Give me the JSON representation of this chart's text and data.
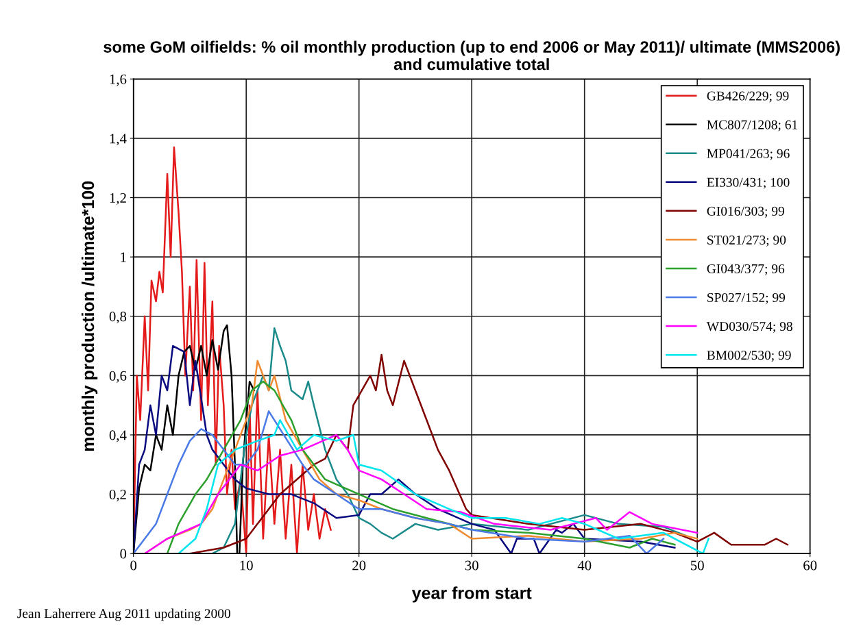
{
  "chart_data": {
    "type": "line",
    "title": "some GoM oilfields: % oil monthly production (up to end 2006 or May 2011)/ ultimate (MMS2006) and cumulative total",
    "xlabel": "year from start",
    "ylabel": "monthly production /ultimate*100",
    "annotations": [
      "Jean Laherrere Aug 2011 updating 2000"
    ],
    "xlim": [
      0,
      60
    ],
    "xticks": [
      0,
      10,
      20,
      30,
      40,
      50,
      60
    ],
    "ylim": [
      0,
      1.6
    ],
    "yticks": [
      0,
      {
        "value": 0.2,
        "label": "0,2"
      },
      {
        "value": 0.4,
        "label": "0,4"
      },
      {
        "value": 0.6,
        "label": "0,6"
      },
      {
        "value": 0.8,
        "label": "0,8"
      },
      1,
      {
        "value": 1.2,
        "label": "1,2"
      },
      {
        "value": 1.4,
        "label": "1,4"
      },
      {
        "value": 1.6,
        "label": "1,6"
      }
    ],
    "grid": true,
    "legend": "top right",
    "marker": "none",
    "line_style": "solid",
    "series": [
      {
        "name": "GB426/229; 99",
        "color": "#e41a1a",
        "x": [
          0,
          0.3,
          0.6,
          1,
          1.3,
          1.6,
          2,
          2.3,
          2.6,
          3,
          3.3,
          3.6,
          4,
          4.3,
          4.6,
          5,
          5.3,
          5.6,
          6,
          6.3,
          6.6,
          7,
          7.3,
          7.6,
          8,
          8.3,
          8.7,
          9,
          9.5,
          10,
          10.3,
          10.6,
          11,
          11.5,
          12,
          12.5,
          13,
          13.5,
          14,
          14.5,
          15,
          15.5,
          16,
          16.5,
          17,
          17.5
        ],
        "values": [
          0,
          0.6,
          0.45,
          0.8,
          0.55,
          0.92,
          0.85,
          0.95,
          0.88,
          1.28,
          1.0,
          1.37,
          1.15,
          0.95,
          0.6,
          0.9,
          0.55,
          0.99,
          0.45,
          0.98,
          0.5,
          0.85,
          0.3,
          0.7,
          0.5,
          0.2,
          0.35,
          0.15,
          0.25,
          0.0,
          0.5,
          0.1,
          0.55,
          0.05,
          0.4,
          0.1,
          0.35,
          0.05,
          0.3,
          0.0,
          0.3,
          0.08,
          0.2,
          0.05,
          0.15,
          0.08
        ]
      },
      {
        "name": "MC807/1208; 61",
        "color": "#000000",
        "x": [
          0,
          0.5,
          1,
          1.5,
          2,
          2.5,
          3,
          3.5,
          4,
          4.5,
          5,
          5.5,
          6,
          6.5,
          7,
          7.5,
          8,
          8.3,
          8.7,
          9,
          9.2,
          9.4,
          9.7,
          10,
          10.3,
          10.7
        ],
        "values": [
          0,
          0.22,
          0.3,
          0.28,
          0.4,
          0.35,
          0.5,
          0.4,
          0.6,
          0.68,
          0.7,
          0.62,
          0.7,
          0.6,
          0.72,
          0.62,
          0.75,
          0.77,
          0.6,
          0.3,
          0.0,
          0.0,
          0.3,
          0.45,
          0.58,
          0.55
        ]
      },
      {
        "name": "MP041/263; 96",
        "color": "#1a8a8a",
        "x": [
          7,
          8,
          9,
          9.5,
          10,
          10.5,
          11,
          11.5,
          12,
          12.5,
          13,
          13.5,
          14,
          15,
          15.5,
          16,
          17,
          17.5,
          18,
          19,
          20,
          21,
          22,
          23,
          25,
          27,
          30,
          35,
          40,
          43,
          47,
          49
        ],
        "values": [
          0,
          0.02,
          0.1,
          0.25,
          0.4,
          0.5,
          0.55,
          0.6,
          0.55,
          0.76,
          0.7,
          0.65,
          0.55,
          0.52,
          0.58,
          0.5,
          0.35,
          0.3,
          0.25,
          0.2,
          0.12,
          0.1,
          0.07,
          0.05,
          0.1,
          0.08,
          0.1,
          0.08,
          0.13,
          0.1,
          0.09,
          0.06
        ]
      },
      {
        "name": "EI330/431; 100",
        "color": "#0a0a80",
        "x": [
          0,
          0.5,
          1,
          1.5,
          2,
          2.5,
          3,
          3.5,
          4.5,
          5,
          5.5,
          6.5,
          7,
          8,
          9,
          10,
          12,
          14,
          16,
          18,
          20,
          21,
          22,
          23.5,
          25,
          27,
          30,
          32,
          33.5,
          34,
          35.5,
          36,
          37.5,
          38,
          39,
          40,
          45,
          48
        ],
        "values": [
          0,
          0.3,
          0.35,
          0.5,
          0.4,
          0.6,
          0.55,
          0.7,
          0.68,
          0.5,
          0.65,
          0.4,
          0.35,
          0.3,
          0.25,
          0.22,
          0.2,
          0.2,
          0.17,
          0.12,
          0.13,
          0.2,
          0.2,
          0.25,
          0.2,
          0.15,
          0.1,
          0.08,
          0.0,
          0.05,
          0.05,
          0.0,
          0.08,
          0.07,
          0.1,
          0.05,
          0.04,
          0.02
        ]
      },
      {
        "name": "GI016/303; 99",
        "color": "#800000",
        "x": [
          5,
          8,
          10,
          11,
          13,
          16,
          17,
          18,
          19,
          19.5,
          21,
          21.5,
          22,
          22.5,
          23,
          24,
          25,
          26,
          27,
          28,
          29.5,
          30,
          35,
          40,
          45,
          48,
          50,
          51.5,
          53,
          56,
          57,
          58
        ],
        "values": [
          0,
          0.02,
          0.05,
          0.1,
          0.2,
          0.3,
          0.32,
          0.4,
          0.35,
          0.5,
          0.6,
          0.55,
          0.67,
          0.55,
          0.5,
          0.65,
          0.55,
          0.45,
          0.35,
          0.28,
          0.15,
          0.13,
          0.1,
          0.08,
          0.1,
          0.07,
          0.04,
          0.07,
          0.03,
          0.03,
          0.05,
          0.03
        ]
      },
      {
        "name": "ST021/273; 90",
        "color": "#f08a30",
        "x": [
          1,
          3,
          5,
          6,
          7,
          8,
          9.5,
          10.5,
          11,
          12,
          12.5,
          13.5,
          15,
          16.5,
          18,
          20,
          22,
          25,
          28,
          30,
          35,
          40,
          45,
          48,
          50
        ],
        "values": [
          0,
          0.05,
          0.08,
          0.1,
          0.15,
          0.25,
          0.4,
          0.5,
          0.65,
          0.55,
          0.6,
          0.45,
          0.35,
          0.25,
          0.2,
          0.18,
          0.15,
          0.12,
          0.1,
          0.05,
          0.06,
          0.04,
          0.05,
          0.07,
          0.05
        ]
      },
      {
        "name": "GI043/377; 96",
        "color": "#2ca02c",
        "x": [
          3,
          4,
          5.5,
          6.5,
          8,
          9.5,
          10.5,
          11.5,
          12.5,
          14,
          15,
          17,
          20,
          23,
          26,
          30,
          35,
          40,
          44,
          46,
          48
        ],
        "values": [
          0,
          0.1,
          0.2,
          0.25,
          0.35,
          0.45,
          0.55,
          0.58,
          0.55,
          0.45,
          0.35,
          0.25,
          0.2,
          0.15,
          0.12,
          0.08,
          0.07,
          0.05,
          0.02,
          0.05,
          0.03
        ]
      },
      {
        "name": "SP027/152; 99",
        "color": "#4a7ae8",
        "x": [
          0,
          1,
          2,
          3,
          4,
          5,
          6,
          7,
          8,
          9,
          10,
          11,
          12,
          13,
          15,
          16,
          18,
          20,
          22,
          25,
          28,
          30,
          35,
          40,
          44,
          45.5,
          47
        ],
        "values": [
          0,
          0.05,
          0.1,
          0.2,
          0.3,
          0.38,
          0.42,
          0.4,
          0.35,
          0.3,
          0.3,
          0.35,
          0.48,
          0.42,
          0.3,
          0.25,
          0.2,
          0.15,
          0.15,
          0.12,
          0.1,
          0.08,
          0.05,
          0.04,
          0.06,
          0.0,
          0.05
        ]
      },
      {
        "name": "WD030/574; 98",
        "color": "#ff00ff",
        "x": [
          1,
          3,
          6,
          7.5,
          8.5,
          9.5,
          11,
          13,
          15,
          18,
          19,
          20,
          22,
          24,
          26,
          29,
          32,
          37,
          41,
          42,
          44,
          46,
          50
        ],
        "values": [
          0,
          0.05,
          0.1,
          0.2,
          0.25,
          0.3,
          0.28,
          0.33,
          0.35,
          0.4,
          0.35,
          0.28,
          0.25,
          0.2,
          0.15,
          0.14,
          0.1,
          0.08,
          0.12,
          0.08,
          0.14,
          0.1,
          0.07
        ]
      },
      {
        "name": "BM002/530; 99",
        "color": "#00e5ee",
        "x": [
          4,
          5.5,
          6.5,
          7.5,
          9,
          11,
          12.5,
          13,
          14.5,
          16,
          18,
          19.5,
          20,
          22,
          25,
          28,
          30,
          33,
          36,
          38,
          40,
          43,
          47,
          50.5,
          51
        ],
        "values": [
          0,
          0.05,
          0.15,
          0.3,
          0.35,
          0.38,
          0.4,
          0.45,
          0.35,
          0.4,
          0.38,
          0.4,
          0.3,
          0.28,
          0.2,
          0.15,
          0.12,
          0.12,
          0.1,
          0.12,
          0.1,
          0.05,
          0.07,
          0.0,
          0.05
        ]
      }
    ]
  }
}
